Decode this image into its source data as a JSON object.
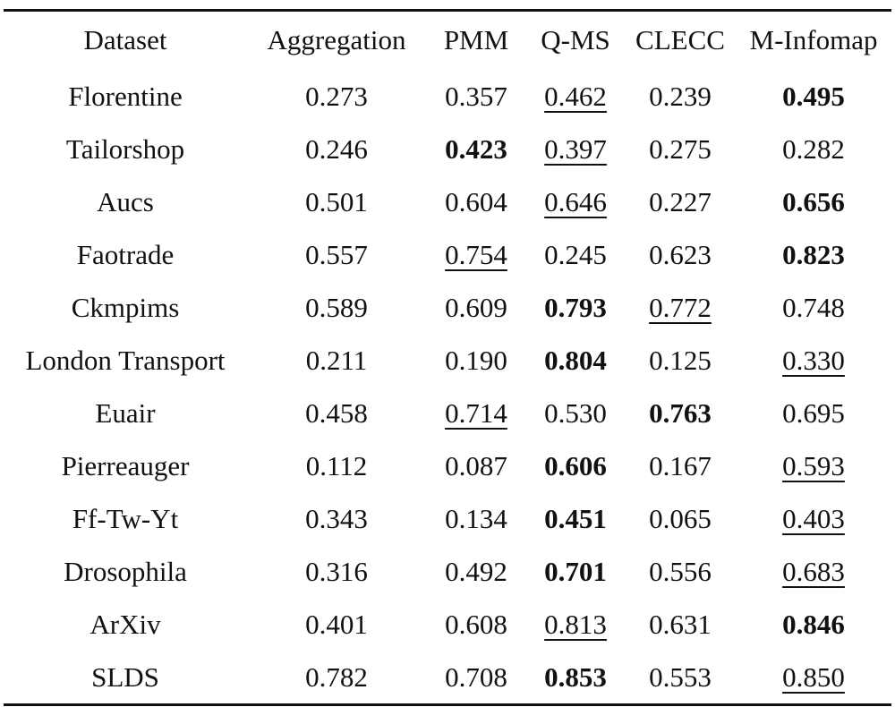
{
  "table": {
    "headers": [
      "Dataset",
      "Aggregation",
      "PMM",
      "Q-MS",
      "CLECC",
      "M-Infomap"
    ],
    "rows": [
      {
        "dataset": "Florentine",
        "cells": [
          {
            "value": "0.273",
            "style": "plain"
          },
          {
            "value": "0.357",
            "style": "plain"
          },
          {
            "value": "0.462",
            "style": "underline"
          },
          {
            "value": "0.239",
            "style": "plain"
          },
          {
            "value": "0.495",
            "style": "bold"
          }
        ]
      },
      {
        "dataset": "Tailorshop",
        "cells": [
          {
            "value": "0.246",
            "style": "plain"
          },
          {
            "value": "0.423",
            "style": "bold"
          },
          {
            "value": "0.397",
            "style": "underline"
          },
          {
            "value": "0.275",
            "style": "plain"
          },
          {
            "value": "0.282",
            "style": "plain"
          }
        ]
      },
      {
        "dataset": "Aucs",
        "cells": [
          {
            "value": "0.501",
            "style": "plain"
          },
          {
            "value": "0.604",
            "style": "plain"
          },
          {
            "value": "0.646",
            "style": "underline"
          },
          {
            "value": "0.227",
            "style": "plain"
          },
          {
            "value": "0.656",
            "style": "bold"
          }
        ]
      },
      {
        "dataset": "Faotrade",
        "cells": [
          {
            "value": "0.557",
            "style": "plain"
          },
          {
            "value": "0.754",
            "style": "underline"
          },
          {
            "value": "0.245",
            "style": "plain"
          },
          {
            "value": "0.623",
            "style": "plain"
          },
          {
            "value": "0.823",
            "style": "bold"
          }
        ]
      },
      {
        "dataset": "Ckmpims",
        "cells": [
          {
            "value": "0.589",
            "style": "plain"
          },
          {
            "value": "0.609",
            "style": "plain"
          },
          {
            "value": "0.793",
            "style": "bold"
          },
          {
            "value": "0.772",
            "style": "underline"
          },
          {
            "value": "0.748",
            "style": "plain"
          }
        ]
      },
      {
        "dataset": "London Transport",
        "cells": [
          {
            "value": "0.211",
            "style": "plain"
          },
          {
            "value": "0.190",
            "style": "plain"
          },
          {
            "value": "0.804",
            "style": "bold"
          },
          {
            "value": "0.125",
            "style": "plain"
          },
          {
            "value": "0.330",
            "style": "underline"
          }
        ]
      },
      {
        "dataset": "Euair",
        "cells": [
          {
            "value": "0.458",
            "style": "plain"
          },
          {
            "value": "0.714",
            "style": "underline"
          },
          {
            "value": "0.530",
            "style": "plain"
          },
          {
            "value": "0.763",
            "style": "bold"
          },
          {
            "value": "0.695",
            "style": "plain"
          }
        ]
      },
      {
        "dataset": "Pierreauger",
        "cells": [
          {
            "value": "0.112",
            "style": "plain"
          },
          {
            "value": "0.087",
            "style": "plain"
          },
          {
            "value": "0.606",
            "style": "bold"
          },
          {
            "value": "0.167",
            "style": "plain"
          },
          {
            "value": "0.593",
            "style": "underline"
          }
        ]
      },
      {
        "dataset": "Ff-Tw-Yt",
        "cells": [
          {
            "value": "0.343",
            "style": "plain"
          },
          {
            "value": "0.134",
            "style": "plain"
          },
          {
            "value": "0.451",
            "style": "bold"
          },
          {
            "value": "0.065",
            "style": "plain"
          },
          {
            "value": "0.403",
            "style": "underline"
          }
        ]
      },
      {
        "dataset": "Drosophila",
        "cells": [
          {
            "value": "0.316",
            "style": "plain"
          },
          {
            "value": "0.492",
            "style": "plain"
          },
          {
            "value": "0.701",
            "style": "bold"
          },
          {
            "value": "0.556",
            "style": "plain"
          },
          {
            "value": "0.683",
            "style": "underline"
          }
        ]
      },
      {
        "dataset": "ArXiv",
        "cells": [
          {
            "value": "0.401",
            "style": "plain"
          },
          {
            "value": "0.608",
            "style": "plain"
          },
          {
            "value": "0.813",
            "style": "underline"
          },
          {
            "value": "0.631",
            "style": "plain"
          },
          {
            "value": "0.846",
            "style": "bold"
          }
        ]
      },
      {
        "dataset": "SLDS",
        "cells": [
          {
            "value": "0.782",
            "style": "plain"
          },
          {
            "value": "0.708",
            "style": "plain"
          },
          {
            "value": "0.853",
            "style": "bold"
          },
          {
            "value": "0.553",
            "style": "plain"
          },
          {
            "value": "0.850",
            "style": "underline"
          }
        ]
      }
    ]
  }
}
